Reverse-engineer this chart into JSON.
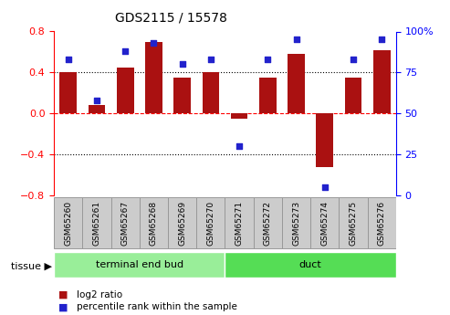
{
  "title": "GDS2115 / 15578",
  "categories": [
    "GSM65260",
    "GSM65261",
    "GSM65267",
    "GSM65268",
    "GSM65269",
    "GSM65270",
    "GSM65271",
    "GSM65272",
    "GSM65273",
    "GSM65274",
    "GSM65275",
    "GSM65276"
  ],
  "log2_ratio": [
    0.4,
    0.08,
    0.45,
    0.7,
    0.35,
    0.4,
    -0.05,
    0.35,
    0.58,
    -0.52,
    0.35,
    0.62
  ],
  "percentile": [
    83,
    58,
    88,
    93,
    80,
    83,
    30,
    83,
    95,
    5,
    83,
    95
  ],
  "bar_color": "#aa1111",
  "dot_color": "#2222cc",
  "ylim": [
    -0.8,
    0.8
  ],
  "y2lim": [
    0,
    100
  ],
  "yticks": [
    -0.8,
    -0.4,
    0.0,
    0.4,
    0.8
  ],
  "y2ticks": [
    0,
    25,
    50,
    75,
    100
  ],
  "y2ticklabels": [
    "0",
    "25",
    "50",
    "75",
    "100%"
  ],
  "hlines": [
    0.4,
    -0.4
  ],
  "zero_line": 0.0,
  "group1_count": 6,
  "group2_count": 6,
  "group1_label": "terminal end bud",
  "group2_label": "duct",
  "group1_color": "#99ee99",
  "group2_color": "#55dd55",
  "tissue_label": "tissue",
  "legend_bar_label": "log2 ratio",
  "legend_dot_label": "percentile rank within the sample",
  "bg_color": "#ffffff",
  "bar_width": 0.6,
  "box_color": "#cccccc",
  "box_edge_color": "#999999"
}
